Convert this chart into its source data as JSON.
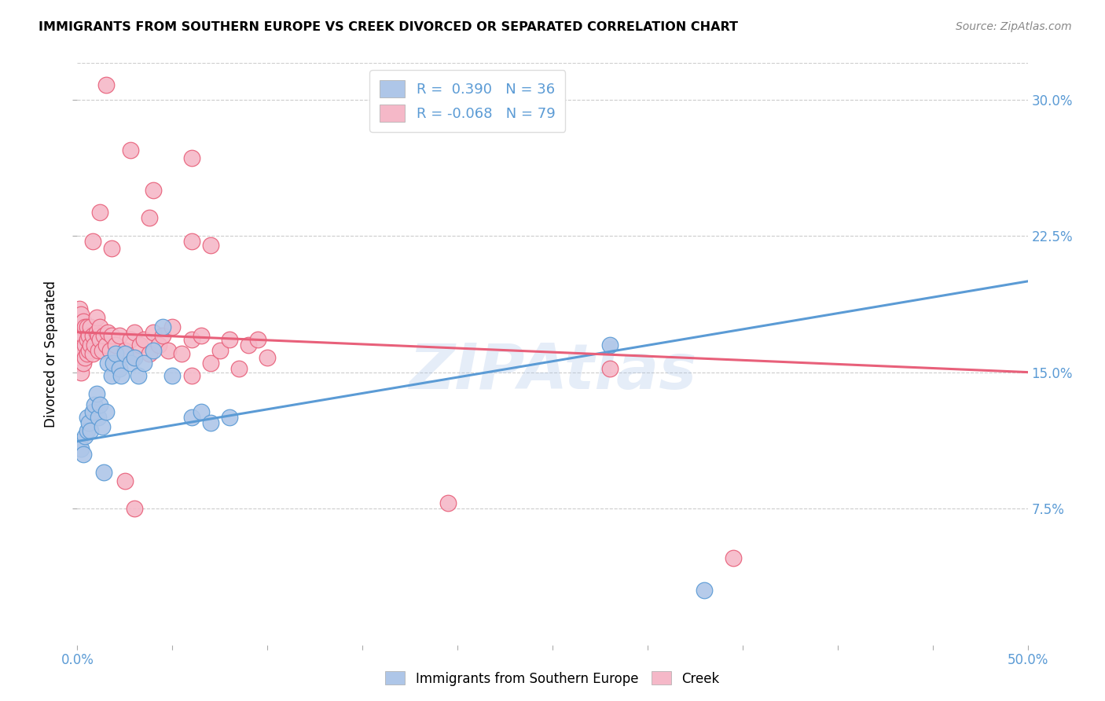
{
  "title": "IMMIGRANTS FROM SOUTHERN EUROPE VS CREEK DIVORCED OR SEPARATED CORRELATION CHART",
  "source": "Source: ZipAtlas.com",
  "ylabel": "Divorced or Separated",
  "ytick_labels": [
    "7.5%",
    "15.0%",
    "22.5%",
    "30.0%"
  ],
  "ytick_values": [
    0.075,
    0.15,
    0.225,
    0.3
  ],
  "xlim": [
    0.0,
    0.5
  ],
  "ylim": [
    0.0,
    0.32
  ],
  "watermark": "ZIPAtlas",
  "color_blue": "#aec6e8",
  "color_pink": "#f5b8c8",
  "line_blue": "#5b9bd5",
  "line_pink": "#e8607a",
  "blue_R": 0.39,
  "blue_N": 36,
  "pink_R": -0.068,
  "pink_N": 79,
  "blue_line_start_y": 0.112,
  "blue_line_end_y": 0.2,
  "pink_line_start_y": 0.172,
  "pink_line_end_y": 0.15,
  "blue_points": [
    [
      0.001,
      0.112
    ],
    [
      0.002,
      0.108
    ],
    [
      0.003,
      0.105
    ],
    [
      0.004,
      0.115
    ],
    [
      0.005,
      0.125
    ],
    [
      0.005,
      0.118
    ],
    [
      0.006,
      0.122
    ],
    [
      0.007,
      0.118
    ],
    [
      0.008,
      0.128
    ],
    [
      0.009,
      0.132
    ],
    [
      0.01,
      0.138
    ],
    [
      0.011,
      0.125
    ],
    [
      0.012,
      0.132
    ],
    [
      0.013,
      0.12
    ],
    [
      0.014,
      0.095
    ],
    [
      0.015,
      0.128
    ],
    [
      0.016,
      0.155
    ],
    [
      0.018,
      0.148
    ],
    [
      0.019,
      0.155
    ],
    [
      0.02,
      0.16
    ],
    [
      0.022,
      0.152
    ],
    [
      0.023,
      0.148
    ],
    [
      0.025,
      0.16
    ],
    [
      0.028,
      0.155
    ],
    [
      0.03,
      0.158
    ],
    [
      0.032,
      0.148
    ],
    [
      0.035,
      0.155
    ],
    [
      0.04,
      0.162
    ],
    [
      0.045,
      0.175
    ],
    [
      0.05,
      0.148
    ],
    [
      0.06,
      0.125
    ],
    [
      0.065,
      0.128
    ],
    [
      0.07,
      0.122
    ],
    [
      0.08,
      0.125
    ],
    [
      0.28,
      0.165
    ],
    [
      0.33,
      0.03
    ]
  ],
  "pink_points": [
    [
      0.001,
      0.155
    ],
    [
      0.001,
      0.165
    ],
    [
      0.001,
      0.172
    ],
    [
      0.001,
      0.178
    ],
    [
      0.001,
      0.185
    ],
    [
      0.002,
      0.15
    ],
    [
      0.002,
      0.16
    ],
    [
      0.002,
      0.168
    ],
    [
      0.002,
      0.175
    ],
    [
      0.002,
      0.182
    ],
    [
      0.003,
      0.155
    ],
    [
      0.003,
      0.162
    ],
    [
      0.003,
      0.17
    ],
    [
      0.003,
      0.178
    ],
    [
      0.004,
      0.158
    ],
    [
      0.004,
      0.165
    ],
    [
      0.004,
      0.175
    ],
    [
      0.005,
      0.16
    ],
    [
      0.005,
      0.168
    ],
    [
      0.005,
      0.175
    ],
    [
      0.006,
      0.162
    ],
    [
      0.006,
      0.17
    ],
    [
      0.007,
      0.165
    ],
    [
      0.007,
      0.175
    ],
    [
      0.008,
      0.16
    ],
    [
      0.008,
      0.17
    ],
    [
      0.009,
      0.165
    ],
    [
      0.01,
      0.172
    ],
    [
      0.01,
      0.18
    ],
    [
      0.011,
      0.162
    ],
    [
      0.011,
      0.17
    ],
    [
      0.012,
      0.168
    ],
    [
      0.012,
      0.175
    ],
    [
      0.013,
      0.162
    ],
    [
      0.014,
      0.17
    ],
    [
      0.015,
      0.165
    ],
    [
      0.016,
      0.172
    ],
    [
      0.017,
      0.162
    ],
    [
      0.018,
      0.17
    ],
    [
      0.02,
      0.165
    ],
    [
      0.022,
      0.17
    ],
    [
      0.025,
      0.162
    ],
    [
      0.028,
      0.168
    ],
    [
      0.03,
      0.158
    ],
    [
      0.03,
      0.172
    ],
    [
      0.033,
      0.165
    ],
    [
      0.035,
      0.168
    ],
    [
      0.038,
      0.16
    ],
    [
      0.04,
      0.172
    ],
    [
      0.043,
      0.165
    ],
    [
      0.045,
      0.17
    ],
    [
      0.048,
      0.162
    ],
    [
      0.05,
      0.175
    ],
    [
      0.055,
      0.16
    ],
    [
      0.06,
      0.148
    ],
    [
      0.06,
      0.168
    ],
    [
      0.065,
      0.17
    ],
    [
      0.07,
      0.155
    ],
    [
      0.075,
      0.162
    ],
    [
      0.08,
      0.168
    ],
    [
      0.085,
      0.152
    ],
    [
      0.09,
      0.165
    ],
    [
      0.095,
      0.168
    ],
    [
      0.1,
      0.158
    ],
    [
      0.015,
      0.308
    ],
    [
      0.028,
      0.272
    ],
    [
      0.04,
      0.25
    ],
    [
      0.038,
      0.235
    ],
    [
      0.06,
      0.268
    ],
    [
      0.008,
      0.222
    ],
    [
      0.012,
      0.238
    ],
    [
      0.018,
      0.218
    ],
    [
      0.025,
      0.09
    ],
    [
      0.03,
      0.075
    ],
    [
      0.195,
      0.078
    ],
    [
      0.345,
      0.048
    ],
    [
      0.28,
      0.152
    ],
    [
      0.06,
      0.222
    ],
    [
      0.07,
      0.22
    ]
  ]
}
